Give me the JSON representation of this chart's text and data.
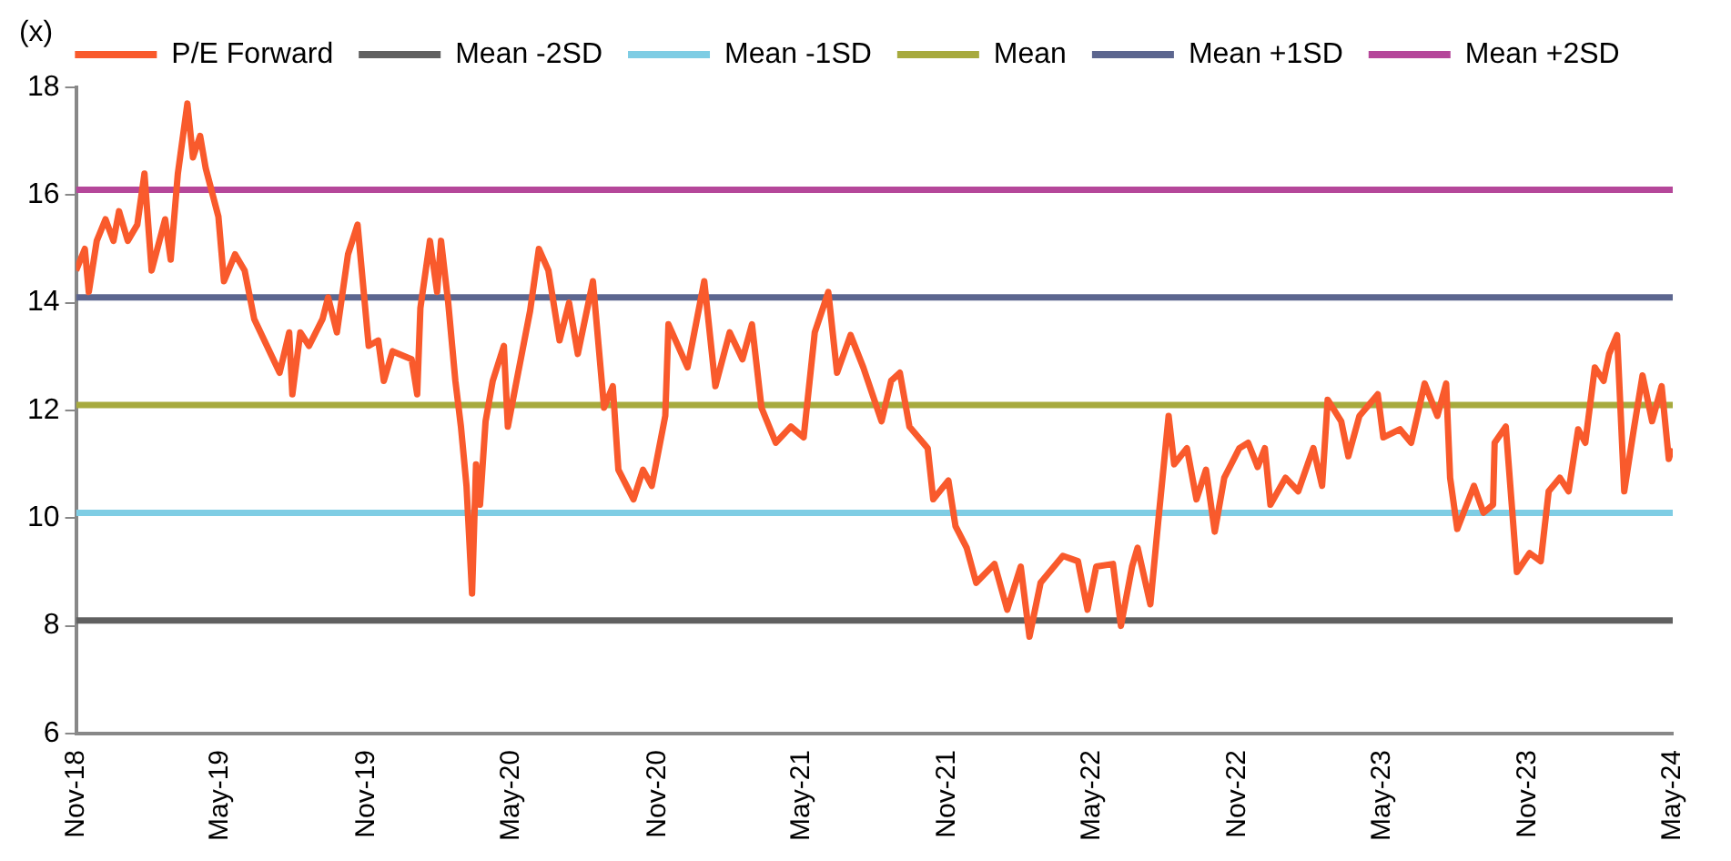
{
  "chart_data": {
    "type": "line",
    "ylabel": "(x)",
    "xlim": [
      "2018-11",
      "2024-05"
    ],
    "xticks": [
      {
        "value": "2018-11",
        "label": "Nov-18"
      },
      {
        "value": "2019-05",
        "label": "May-19"
      },
      {
        "value": "2019-11",
        "label": "Nov-19"
      },
      {
        "value": "2020-05",
        "label": "May-20"
      },
      {
        "value": "2020-11",
        "label": "Nov-20"
      },
      {
        "value": "2021-05",
        "label": "May-21"
      },
      {
        "value": "2021-11",
        "label": "Nov-21"
      },
      {
        "value": "2022-05",
        "label": "May-22"
      },
      {
        "value": "2022-11",
        "label": "Nov-22"
      },
      {
        "value": "2023-05",
        "label": "May-23"
      },
      {
        "value": "2023-11",
        "label": "Nov-23"
      },
      {
        "value": "2024-05",
        "label": "May-24"
      }
    ],
    "ylim": [
      6,
      18
    ],
    "yticks": [
      6,
      8,
      10,
      12,
      14,
      16,
      18
    ],
    "grid": false,
    "legend": "top",
    "marker": "none",
    "line_style": "solid",
    "series": [
      {
        "name": "P/E Forward",
        "color": "#f95a2c",
        "x": [
          "2018-11-01",
          "2018-11-12",
          "2018-11-17",
          "2018-11-27",
          "2018-12-08",
          "2018-12-18",
          "2018-12-25",
          "2019-01-05",
          "2019-01-17",
          "2019-01-26",
          "2019-02-04",
          "2019-02-21",
          "2019-02-28",
          "2019-03-09",
          "2019-03-21",
          "2019-03-28",
          "2019-04-06",
          "2019-04-13",
          "2019-04-29",
          "2019-05-06",
          "2019-05-20",
          "2019-06-01",
          "2019-06-13",
          "2019-06-29",
          "2019-07-15",
          "2019-07-27",
          "2019-07-31",
          "2019-08-10",
          "2019-08-21",
          "2019-09-07",
          "2019-09-14",
          "2019-09-25",
          "2019-10-09",
          "2019-10-21",
          "2019-11-04",
          "2019-11-16",
          "2019-11-23",
          "2019-12-04",
          "2019-12-28",
          "2020-01-04",
          "2020-01-08",
          "2020-01-20",
          "2020-01-29",
          "2020-02-03",
          "2020-02-12",
          "2020-02-21",
          "2020-02-28",
          "2020-03-06",
          "2020-03-13",
          "2020-03-18",
          "2020-03-23",
          "2020-03-30",
          "2020-04-08",
          "2020-04-22",
          "2020-04-27",
          "2020-05-08",
          "2020-05-25",
          "2020-06-05",
          "2020-06-17",
          "2020-07-01",
          "2020-07-13",
          "2020-07-24",
          "2020-08-12",
          "2020-08-26",
          "2020-09-06",
          "2020-09-13",
          "2020-10-02",
          "2020-10-14",
          "2020-10-25",
          "2020-11-11",
          "2020-11-15",
          "2020-12-09",
          "2020-12-30",
          "2021-01-13",
          "2021-01-31",
          "2021-02-16",
          "2021-02-28",
          "2021-03-12",
          "2021-03-30",
          "2021-04-18",
          "2021-05-04",
          "2021-05-18",
          "2021-06-04",
          "2021-06-15",
          "2021-07-02",
          "2021-07-18",
          "2021-08-10",
          "2021-08-22",
          "2021-09-02",
          "2021-09-14",
          "2021-10-07",
          "2021-10-14",
          "2021-11-02",
          "2021-11-11",
          "2021-11-25",
          "2021-12-07",
          "2021-12-30",
          "2022-01-15",
          "2022-02-01",
          "2022-02-12",
          "2022-02-26",
          "2022-03-26",
          "2022-04-14",
          "2022-04-26",
          "2022-05-07",
          "2022-05-28",
          "2022-06-07",
          "2022-06-21",
          "2022-06-28",
          "2022-07-14",
          "2022-07-25",
          "2022-08-06",
          "2022-08-13",
          "2022-08-29",
          "2022-09-10",
          "2022-09-22",
          "2022-10-03",
          "2022-10-15",
          "2022-11-03",
          "2022-11-14",
          "2022-11-26",
          "2022-12-05",
          "2022-12-12",
          "2022-12-31",
          "2023-01-16",
          "2023-02-04",
          "2023-02-15",
          "2023-02-22",
          "2023-03-11",
          "2023-03-20",
          "2023-04-03",
          "2023-04-26",
          "2023-05-03",
          "2023-05-24",
          "2023-06-07",
          "2023-06-24",
          "2023-07-10",
          "2023-07-21",
          "2023-07-26",
          "2023-08-04",
          "2023-08-25",
          "2023-09-06",
          "2023-09-18",
          "2023-09-20",
          "2023-10-04",
          "2023-10-11",
          "2023-10-18",
          "2023-11-03",
          "2023-11-17",
          "2023-11-27",
          "2023-12-11",
          "2023-12-22",
          "2024-01-03",
          "2024-01-12",
          "2024-01-24",
          "2024-02-04",
          "2024-02-11",
          "2024-02-21",
          "2024-02-28",
          "2024-03-01",
          "2024-03-13",
          "2024-03-24",
          "2024-04-05",
          "2024-04-17",
          "2024-04-26",
          "2024-04-30"
        ],
        "values": [
          14.6,
          15.0,
          14.2,
          15.15,
          15.55,
          15.15,
          15.7,
          15.15,
          15.45,
          16.4,
          14.6,
          15.55,
          14.8,
          16.4,
          17.7,
          16.7,
          17.1,
          16.5,
          15.6,
          14.4,
          14.9,
          14.6,
          13.7,
          13.2,
          12.7,
          13.45,
          12.3,
          13.45,
          13.2,
          13.7,
          14.1,
          13.45,
          14.9,
          15.45,
          13.2,
          13.3,
          12.55,
          13.1,
          12.95,
          12.3,
          13.9,
          15.15,
          14.2,
          15.15,
          14.0,
          12.55,
          11.7,
          10.6,
          8.6,
          11.0,
          10.25,
          11.8,
          12.55,
          13.2,
          11.7,
          12.55,
          13.85,
          15.0,
          14.6,
          13.3,
          14.0,
          13.05,
          14.4,
          12.05,
          12.45,
          10.9,
          10.35,
          10.9,
          10.6,
          11.9,
          13.6,
          12.8,
          14.4,
          12.45,
          13.45,
          12.95,
          13.6,
          12.05,
          11.4,
          11.7,
          11.5,
          13.45,
          14.2,
          12.7,
          13.4,
          12.8,
          11.8,
          12.55,
          12.7,
          11.7,
          11.3,
          10.35,
          10.7,
          9.85,
          9.45,
          8.8,
          9.15,
          8.3,
          9.1,
          7.8,
          8.8,
          9.3,
          9.2,
          8.3,
          9.1,
          9.15,
          8.0,
          9.1,
          9.45,
          8.4,
          10.1,
          11.9,
          11.0,
          11.3,
          10.35,
          10.9,
          9.75,
          10.75,
          11.3,
          11.4,
          10.95,
          11.3,
          10.25,
          10.75,
          10.5,
          11.3,
          10.6,
          12.2,
          11.8,
          11.15,
          11.9,
          12.3,
          11.5,
          11.65,
          11.4,
          12.5,
          11.9,
          12.5,
          10.75,
          9.8,
          10.6,
          10.1,
          10.25,
          11.4,
          11.7,
          10.35,
          9.0,
          9.35,
          9.2,
          10.5,
          10.75,
          10.5,
          11.65,
          11.4,
          12.8,
          12.55,
          13.05,
          13.4,
          11.15,
          10.5,
          11.65,
          12.65,
          11.8,
          12.45,
          11.1,
          11.3
        ]
      }
    ],
    "ref_lines": [
      {
        "axis": "y",
        "value": 8.1,
        "label": "Mean -2SD",
        "color": "#606060"
      },
      {
        "axis": "y",
        "value": 10.1,
        "label": "Mean -1SD",
        "color": "#7fcde4"
      },
      {
        "axis": "y",
        "value": 12.1,
        "label": "Mean",
        "color": "#a7aa3e"
      },
      {
        "axis": "y",
        "value": 14.1,
        "label": "Mean +1SD",
        "color": "#5c668f"
      },
      {
        "axis": "y",
        "value": 16.1,
        "label": "Mean +2SD",
        "color": "#b5479a"
      }
    ]
  }
}
